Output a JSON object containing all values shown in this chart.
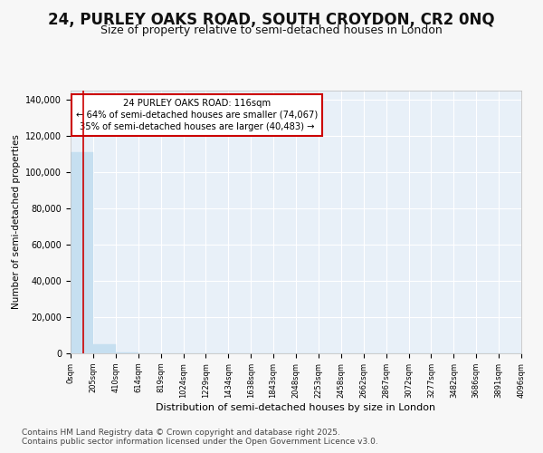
{
  "title": "24, PURLEY OAKS ROAD, SOUTH CROYDON, CR2 0NQ",
  "subtitle": "Size of property relative to semi-detached houses in London",
  "xlabel": "Distribution of semi-detached houses by size in London",
  "ylabel": "Number of semi-detached properties",
  "property_size": 116,
  "pct_smaller": 64,
  "pct_larger": 35,
  "n_smaller": 74067,
  "n_larger": 40483,
  "bin_edges": [
    0,
    205,
    410,
    614,
    819,
    1024,
    1229,
    1434,
    1638,
    1843,
    2048,
    2253,
    2458,
    2662,
    2867,
    3072,
    3277,
    3482,
    3686,
    3891,
    4096
  ],
  "bar_heights": [
    111000,
    4800,
    450,
    180,
    90,
    65,
    50,
    40,
    32,
    25,
    20,
    17,
    14,
    12,
    10,
    8,
    7,
    6,
    5,
    4
  ],
  "bar_color": "#c6dff0",
  "bar_edge_color": "#c6dff0",
  "vline_color": "#cc0000",
  "vline_x": 116,
  "ylim": [
    0,
    145000
  ],
  "yticks": [
    0,
    20000,
    40000,
    60000,
    80000,
    100000,
    120000,
    140000
  ],
  "annotation_box_color": "#cc0000",
  "ann_line1": "24 PURLEY OAKS ROAD: 116sqm",
  "ann_line2": "← 64% of semi-detached houses are smaller (74,067)",
  "ann_line3": "35% of semi-detached houses are larger (40,483) →",
  "footer": "Contains HM Land Registry data © Crown copyright and database right 2025.\nContains public sector information licensed under the Open Government Licence v3.0.",
  "bg_color": "#f7f7f7",
  "plot_bg_color": "#e8f0f8",
  "grid_color": "#ffffff",
  "title_fontsize": 12,
  "subtitle_fontsize": 9,
  "footer_fontsize": 6.5
}
